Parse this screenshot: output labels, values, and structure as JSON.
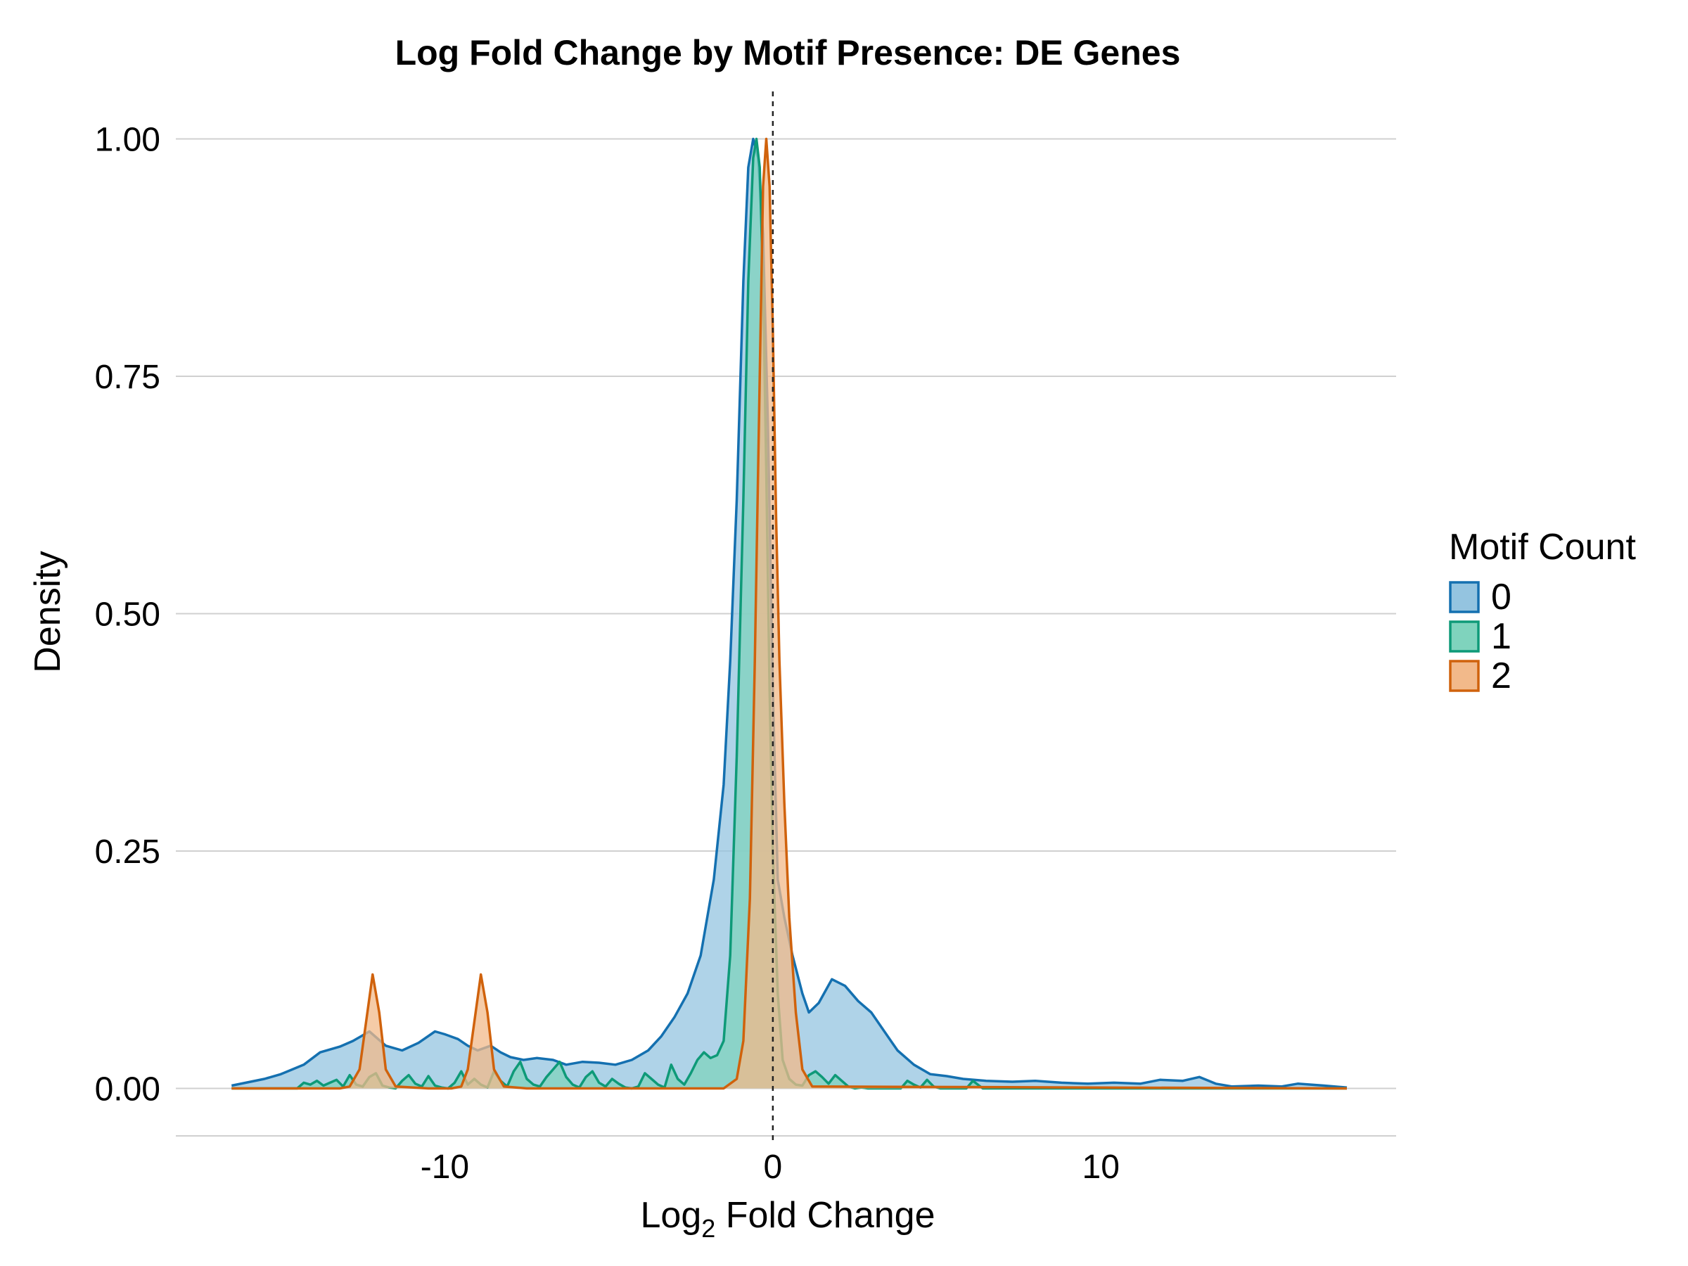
{
  "chart_data": {
    "type": "area",
    "title": "Log Fold Change by Motif Presence: DE Genes",
    "xlabel_main": "Log",
    "xlabel_sub": "2",
    "xlabel_rest": " Fold Change",
    "ylabel": "Density",
    "xlim": [
      -18.2,
      19.0
    ],
    "ylim": [
      -0.05,
      1.05
    ],
    "x_ticks": [
      -10,
      0,
      10
    ],
    "x_tick_labels": [
      "-10",
      "0",
      "10"
    ],
    "y_ticks": [
      0,
      0.25,
      0.5,
      0.75,
      1.0
    ],
    "y_tick_labels": [
      "0.00",
      "0.25",
      "0.50",
      "0.75",
      "1.00"
    ],
    "reference_line_x": 0,
    "legend": {
      "title": "Motif Count",
      "position": "right"
    },
    "series": [
      {
        "name": "0",
        "line_color": "#1470b0",
        "fill_color": "#94c4e0",
        "x": [
          -16.5,
          -15.5,
          -15,
          -14.3,
          -13.8,
          -13.2,
          -12.8,
          -12.3,
          -11.8,
          -11.3,
          -10.8,
          -10.3,
          -10,
          -9.6,
          -9.3,
          -9,
          -8.6,
          -8.3,
          -8,
          -7.6,
          -7.2,
          -6.7,
          -6.3,
          -5.8,
          -5.3,
          -4.8,
          -4.3,
          -3.8,
          -3.4,
          -3,
          -2.6,
          -2.2,
          -1.8,
          -1.5,
          -1.3,
          -1.1,
          -0.9,
          -0.75,
          -0.6,
          -0.45,
          -0.3,
          -0.15,
          0,
          0.15,
          0.35,
          0.6,
          0.9,
          1.1,
          1.4,
          1.8,
          2.2,
          2.6,
          3,
          3.4,
          3.8,
          4.3,
          4.8,
          5.3,
          5.8,
          6.5,
          7.3,
          8,
          8.8,
          9.6,
          10.4,
          11.2,
          11.8,
          12.5,
          13,
          13.5,
          14,
          14.8,
          15.5,
          16,
          16.8,
          17.5
        ],
        "y": [
          0.003,
          0.01,
          0.015,
          0.025,
          0.038,
          0.044,
          0.05,
          0.06,
          0.045,
          0.04,
          0.048,
          0.06,
          0.057,
          0.052,
          0.045,
          0.04,
          0.045,
          0.038,
          0.033,
          0.03,
          0.032,
          0.03,
          0.025,
          0.028,
          0.027,
          0.025,
          0.03,
          0.04,
          0.055,
          0.075,
          0.1,
          0.14,
          0.22,
          0.32,
          0.45,
          0.62,
          0.85,
          0.97,
          1.0,
          0.98,
          0.9,
          0.7,
          0.42,
          0.22,
          0.18,
          0.14,
          0.1,
          0.08,
          0.09,
          0.115,
          0.108,
          0.092,
          0.08,
          0.06,
          0.04,
          0.025,
          0.015,
          0.013,
          0.01,
          0.008,
          0.007,
          0.008,
          0.006,
          0.005,
          0.006,
          0.005,
          0.009,
          0.008,
          0.012,
          0.005,
          0.002,
          0.003,
          0.002,
          0.005,
          0.003,
          0.001
        ]
      },
      {
        "name": "1",
        "line_color": "#0e9a78",
        "fill_color": "#7fd3bd",
        "x": [
          -16.5,
          -14.5,
          -14.3,
          -14.1,
          -13.9,
          -13.7,
          -13.5,
          -13.3,
          -13.1,
          -12.9,
          -12.7,
          -12.5,
          -12.3,
          -12.1,
          -11.9,
          -11.7,
          -11.5,
          -11.3,
          -11.1,
          -10.9,
          -10.7,
          -10.5,
          -10.3,
          -10.1,
          -9.9,
          -9.7,
          -9.5,
          -9.3,
          -9.1,
          -8.9,
          -8.7,
          -8.5,
          -8.3,
          -8.1,
          -7.9,
          -7.7,
          -7.5,
          -7.3,
          -7.1,
          -6.9,
          -6.7,
          -6.5,
          -6.3,
          -6.1,
          -5.9,
          -5.7,
          -5.5,
          -5.3,
          -5.1,
          -4.9,
          -4.7,
          -4.5,
          -4.3,
          -4.1,
          -3.9,
          -3.7,
          -3.5,
          -3.3,
          -3.1,
          -2.9,
          -2.7,
          -2.5,
          -2.3,
          -2.1,
          -1.9,
          -1.7,
          -1.5,
          -1.3,
          -1.1,
          -0.9,
          -0.75,
          -0.6,
          -0.5,
          -0.4,
          -0.3,
          -0.2,
          -0.1,
          0,
          0.15,
          0.3,
          0.5,
          0.7,
          0.9,
          1.1,
          1.3,
          1.5,
          1.7,
          1.9,
          2.1,
          2.3,
          2.5,
          2.7,
          2.9,
          3.1,
          3.5,
          3.9,
          4.1,
          4.3,
          4.5,
          4.7,
          4.9,
          5.1,
          5.5,
          5.9,
          6.1,
          6.4,
          7,
          17.5
        ],
        "y": [
          0,
          0,
          0.006,
          0.004,
          0.008,
          0.003,
          0.006,
          0.009,
          0.002,
          0.014,
          0.004,
          0.002,
          0.012,
          0.016,
          0.003,
          0.001,
          0,
          0.008,
          0.014,
          0.005,
          0.002,
          0.013,
          0.003,
          0.001,
          0,
          0.006,
          0.018,
          0.004,
          0.01,
          0.004,
          0.001,
          0.018,
          0.008,
          0.002,
          0.018,
          0.028,
          0.01,
          0.004,
          0.002,
          0.012,
          0.02,
          0.028,
          0.012,
          0.004,
          0.001,
          0.012,
          0.018,
          0.006,
          0.002,
          0.01,
          0.005,
          0.001,
          0,
          0.002,
          0.016,
          0.01,
          0.004,
          0.001,
          0.025,
          0.01,
          0.004,
          0.016,
          0.03,
          0.038,
          0.032,
          0.035,
          0.05,
          0.14,
          0.35,
          0.62,
          0.85,
          0.98,
          1.0,
          0.97,
          0.85,
          0.65,
          0.42,
          0.25,
          0.1,
          0.03,
          0.01,
          0.004,
          0.003,
          0.014,
          0.018,
          0.012,
          0.005,
          0.014,
          0.008,
          0.002,
          0,
          0.001,
          0,
          0,
          0,
          0,
          0.008,
          0.004,
          0.001,
          0.009,
          0.002,
          0,
          0,
          0,
          0.008,
          0,
          0,
          0
        ]
      },
      {
        "name": "2",
        "line_color": "#d0620c",
        "fill_color": "#f2b98a",
        "x": [
          -16.5,
          -13.2,
          -12.9,
          -12.6,
          -12.4,
          -12.2,
          -12.0,
          -11.8,
          -11.5,
          -10.5,
          -9.8,
          -9.5,
          -9.3,
          -9.1,
          -8.9,
          -8.7,
          -8.5,
          -8.2,
          -7.5,
          -1.5,
          -1.1,
          -0.9,
          -0.7,
          -0.55,
          -0.4,
          -0.3,
          -0.2,
          -0.1,
          0,
          0.1,
          0.2,
          0.35,
          0.5,
          0.7,
          0.9,
          1.2,
          17.5
        ],
        "y": [
          0,
          0,
          0.002,
          0.02,
          0.07,
          0.12,
          0.08,
          0.02,
          0.002,
          0,
          0,
          0.002,
          0.02,
          0.07,
          0.12,
          0.08,
          0.02,
          0.002,
          0,
          0,
          0.01,
          0.05,
          0.2,
          0.45,
          0.75,
          0.95,
          1.0,
          0.95,
          0.8,
          0.6,
          0.45,
          0.3,
          0.18,
          0.08,
          0.02,
          0.002,
          0
        ]
      }
    ]
  }
}
